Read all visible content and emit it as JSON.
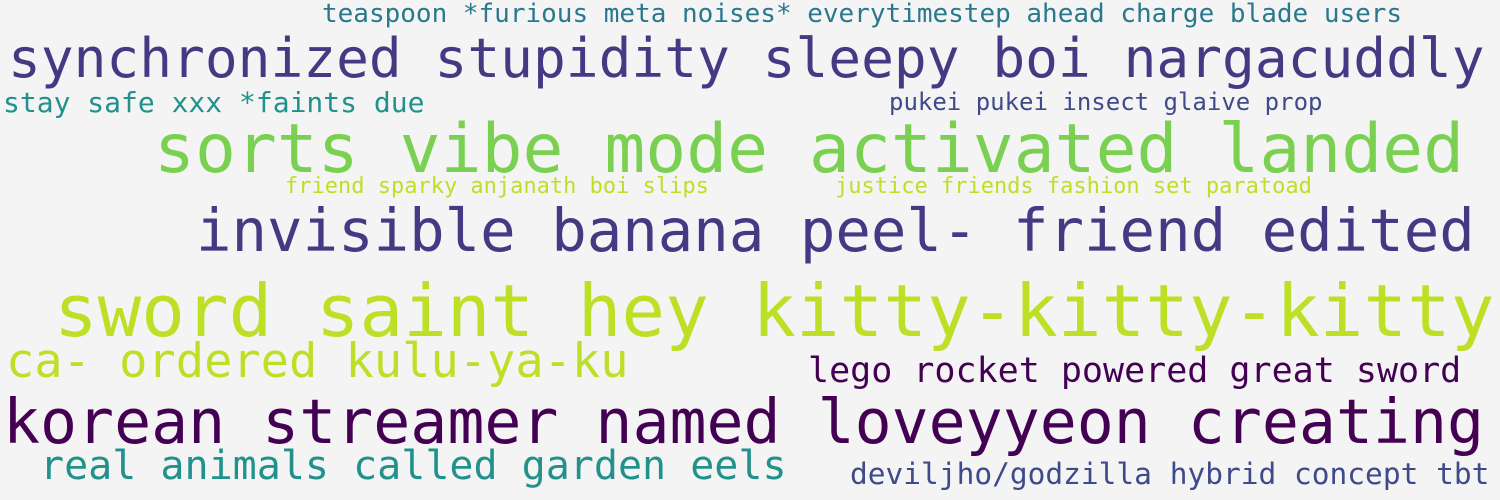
{
  "palette": {
    "background": "#f4f4f4",
    "teal_dark": "#2a788e",
    "indigo": "#443a83",
    "teal": "#21918c",
    "slate": "#3e4a89",
    "green": "#7ad151",
    "lime": "#bddf26",
    "aubergine": "#440154"
  },
  "phrases": [
    {
      "text": "teaspoon *furious meta noises* everytimestep ahead charge blade users",
      "color": "#2a788e"
    },
    {
      "text": "synchronized stupidity sleepy boi nargacuddly",
      "color": "#443a83"
    },
    {
      "text": "stay safe xxx *faints due",
      "color": "#21918c"
    },
    {
      "text": "pukei pukei insect glaive prop",
      "color": "#3e4a89"
    },
    {
      "text": "sorts vibe mode activated landed",
      "color": "#7ad151"
    },
    {
      "text": "friend sparky anjanath boi slips",
      "color": "#bddf26"
    },
    {
      "text": "justice friends fashion set paratoad",
      "color": "#bddf26"
    },
    {
      "text": "invisible banana peel- friend edited",
      "color": "#443a83"
    },
    {
      "text": "sword saint hey kitty-kitty-kitty",
      "color": "#bddf26"
    },
    {
      "text": "ca- ordered kulu-ya-ku",
      "color": "#bddf26"
    },
    {
      "text": "lego rocket powered great sword",
      "color": "#440154"
    },
    {
      "text": "korean streamer named loveyyeon creating",
      "color": "#440154"
    },
    {
      "text": "real animals called garden eels",
      "color": "#21918c"
    },
    {
      "text": "deviljho/godzilla hybrid concept tbt",
      "color": "#3e4a89"
    }
  ]
}
